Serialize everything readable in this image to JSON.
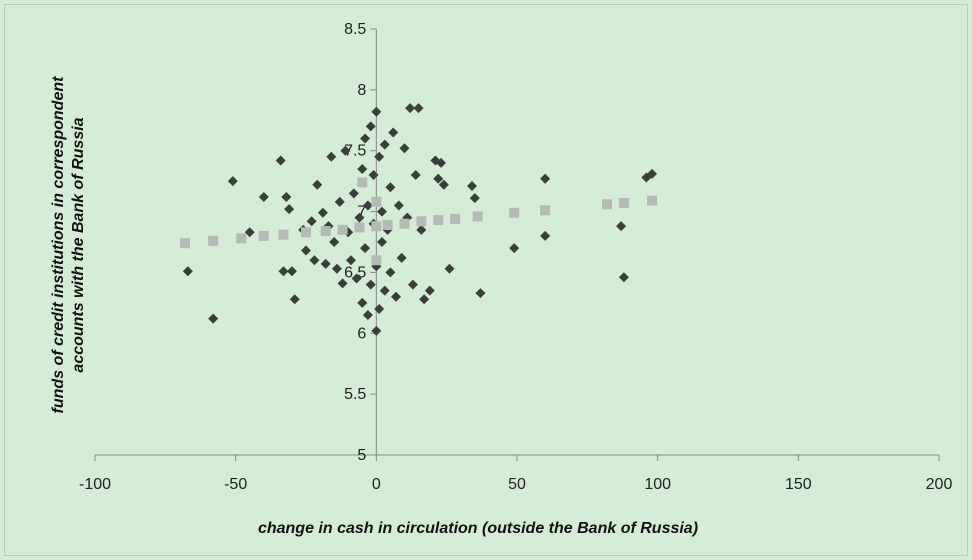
{
  "chart_data": {
    "type": "scatter",
    "title": "",
    "xlabel": "change in cash in circulation (outside the Bank of Russia)",
    "ylabel_lines": [
      "funds  of credit institutions in correspondent",
      "accounts with the Bank of Russia"
    ],
    "xlim": [
      -100,
      200
    ],
    "ylim": [
      5,
      8.5
    ],
    "xticks": [
      -100,
      -50,
      0,
      50,
      100,
      150,
      200
    ],
    "yticks": [
      5,
      5.5,
      6,
      6.5,
      7,
      7.5,
      8,
      8.5
    ],
    "grid": false,
    "legend": "none",
    "series": [
      {
        "kind": "observed",
        "color": "#3a3f3a",
        "points": [
          [
            -67,
            6.51
          ],
          [
            -58,
            6.12
          ],
          [
            -51,
            7.25
          ],
          [
            -45,
            6.83
          ],
          [
            -40,
            7.12
          ],
          [
            -34,
            7.42
          ],
          [
            -33,
            6.51
          ],
          [
            -32,
            7.12
          ],
          [
            -31,
            7.02
          ],
          [
            -30,
            6.51
          ],
          [
            -29,
            6.28
          ],
          [
            -26,
            6.85
          ],
          [
            -25,
            6.68
          ],
          [
            -23,
            6.92
          ],
          [
            -22,
            6.6
          ],
          [
            -21,
            7.22
          ],
          [
            -19,
            6.99
          ],
          [
            -18,
            6.57
          ],
          [
            -17,
            6.88
          ],
          [
            -16,
            7.45
          ],
          [
            -15,
            6.75
          ],
          [
            -14,
            6.53
          ],
          [
            -13,
            7.08
          ],
          [
            -12,
            6.41
          ],
          [
            -11,
            7.5
          ],
          [
            -10,
            6.83
          ],
          [
            -9,
            6.6
          ],
          [
            -8,
            7.15
          ],
          [
            -7,
            6.45
          ],
          [
            -6,
            6.95
          ],
          [
            -5,
            7.35
          ],
          [
            -5,
            6.25
          ],
          [
            -4,
            6.7
          ],
          [
            -4,
            7.6
          ],
          [
            -3,
            6.15
          ],
          [
            -3,
            7.05
          ],
          [
            -2,
            7.7
          ],
          [
            -2,
            6.4
          ],
          [
            -1,
            6.9
          ],
          [
            -1,
            7.3
          ],
          [
            0,
            6.02
          ],
          [
            0,
            6.55
          ],
          [
            0,
            7.82
          ],
          [
            1,
            6.2
          ],
          [
            1,
            7.45
          ],
          [
            2,
            6.75
          ],
          [
            2,
            7.0
          ],
          [
            3,
            6.35
          ],
          [
            3,
            7.55
          ],
          [
            4,
            6.85
          ],
          [
            5,
            7.2
          ],
          [
            5,
            6.5
          ],
          [
            6,
            7.65
          ],
          [
            7,
            6.3
          ],
          [
            8,
            7.05
          ],
          [
            9,
            6.62
          ],
          [
            10,
            7.52
          ],
          [
            11,
            6.95
          ],
          [
            12,
            7.85
          ],
          [
            13,
            6.4
          ],
          [
            14,
            7.3
          ],
          [
            15,
            7.85
          ],
          [
            16,
            6.85
          ],
          [
            17,
            6.28
          ],
          [
            19,
            6.35
          ],
          [
            21,
            7.42
          ],
          [
            22,
            7.27
          ],
          [
            23,
            7.4
          ],
          [
            24,
            7.22
          ],
          [
            26,
            6.53
          ],
          [
            34,
            7.21
          ],
          [
            35,
            7.11
          ],
          [
            37,
            6.33
          ],
          [
            49,
            6.7
          ],
          [
            60,
            7.27
          ],
          [
            60,
            6.8
          ],
          [
            87,
            6.88
          ],
          [
            88,
            6.46
          ],
          [
            96,
            7.28
          ],
          [
            98,
            7.31
          ]
        ]
      },
      {
        "kind": "fitted",
        "color": "#b4bbb4",
        "points": [
          [
            -68,
            6.74
          ],
          [
            -58,
            6.76
          ],
          [
            -48,
            6.78
          ],
          [
            -40,
            6.8
          ],
          [
            -33,
            6.81
          ],
          [
            -25,
            6.83
          ],
          [
            -18,
            6.84
          ],
          [
            -12,
            6.85
          ],
          [
            -6,
            6.87
          ],
          [
            -5,
            7.24
          ],
          [
            0,
            6.88
          ],
          [
            0,
            6.6
          ],
          [
            0,
            7.08
          ],
          [
            4,
            6.89
          ],
          [
            10,
            6.9
          ],
          [
            16,
            6.92
          ],
          [
            22,
            6.93
          ],
          [
            28,
            6.94
          ],
          [
            36,
            6.96
          ],
          [
            49,
            6.99
          ],
          [
            60,
            7.01
          ],
          [
            82,
            7.06
          ],
          [
            88,
            7.07
          ],
          [
            98,
            7.09
          ]
        ]
      }
    ]
  }
}
